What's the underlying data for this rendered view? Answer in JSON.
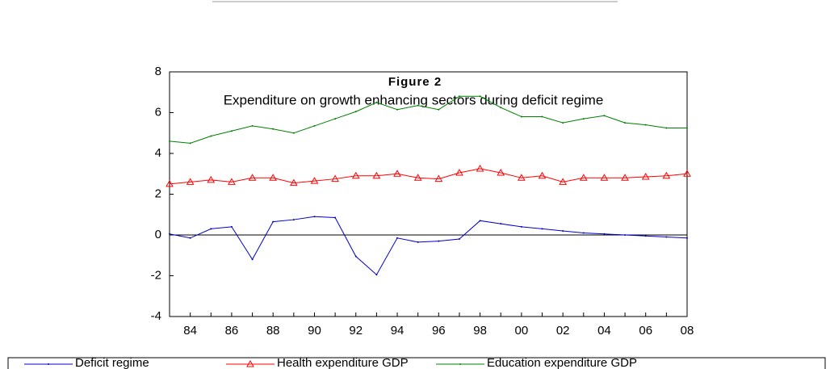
{
  "chart_data": {
    "type": "line",
    "title": "Figure 2",
    "subtitle": "Expenditure on growth enhancing sectors during deficit regime",
    "categories": [
      null,
      "84",
      null,
      "86",
      null,
      "88",
      null,
      "90",
      null,
      "92",
      null,
      "94",
      null,
      "96",
      null,
      "98",
      null,
      "00",
      null,
      "02",
      null,
      "04",
      null,
      "06",
      null,
      "08"
    ],
    "series": [
      {
        "name": "Deficit regime",
        "color": "#0000cc",
        "marker": "dot",
        "values": [
          0.05,
          -0.15,
          0.3,
          0.4,
          -1.2,
          0.65,
          0.75,
          0.9,
          0.85,
          -1.05,
          -1.95,
          -0.15,
          -0.35,
          -0.3,
          -0.2,
          0.7,
          0.55,
          0.4,
          0.3,
          0.2,
          0.1,
          0.05,
          0,
          -0.05,
          -0.1,
          -0.15
        ]
      },
      {
        "name": "Health expenditure GDP",
        "color": "#ff0000",
        "marker": "triangle",
        "values": [
          2.5,
          2.6,
          2.7,
          2.6,
          2.8,
          2.8,
          2.55,
          2.65,
          2.75,
          2.9,
          2.9,
          3.0,
          2.8,
          2.75,
          3.05,
          3.25,
          3.05,
          2.8,
          2.9,
          2.6,
          2.8,
          2.8,
          2.8,
          2.85,
          2.9,
          3.0
        ]
      },
      {
        "name": "Education expenditure GDP",
        "color": "#008000",
        "marker": "dot",
        "values": [
          4.6,
          4.5,
          4.85,
          5.1,
          5.35,
          5.2,
          5.0,
          5.35,
          5.7,
          6.05,
          6.5,
          6.15,
          6.35,
          6.15,
          6.8,
          6.8,
          6.25,
          5.8,
          5.8,
          5.5,
          5.7,
          5.85,
          5.5,
          5.4,
          5.25,
          5.25
        ]
      }
    ],
    "ylim": [
      -4,
      8
    ],
    "yticks": [
      -4,
      -2,
      0,
      2,
      4,
      6,
      8
    ],
    "legend": "bottom"
  }
}
